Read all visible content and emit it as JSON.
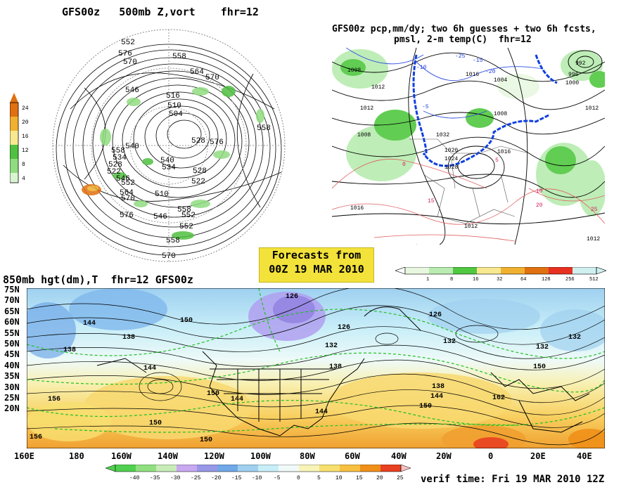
{
  "panels": {
    "top_left": {
      "title": "GFS00z   500mb Z,vort    fhr=12",
      "colorbar": {
        "labels": [
          "24",
          "20",
          "16",
          "12",
          "8",
          "4"
        ],
        "colors": [
          "#e07010",
          "#f0b030",
          "#f8e890",
          "#50c040",
          "#90dc80",
          "#d8f4d0"
        ]
      },
      "contour_labels": [
        "552",
        "576",
        "570",
        "558",
        "564",
        "570",
        "546",
        "558",
        "516",
        "510",
        "504",
        "528",
        "558",
        "540",
        "534",
        "528",
        "522",
        "546",
        "552",
        "564",
        "570",
        "540",
        "534",
        "510",
        "558",
        "576",
        "558",
        "570",
        "552",
        "576",
        "546",
        "552",
        "528",
        "522"
      ]
    },
    "top_right": {
      "title_line1": "GFS00z pcp,mm/dy; two 6h guesses + two 6h fcsts,",
      "title_line2": "pmsl, 2-m temp(C)  fhr=12",
      "pressure_labels": [
        "1008",
        "1012",
        "1004",
        "1016",
        "1020",
        "1024",
        "1028",
        "1032",
        "1008",
        "1012",
        "1016",
        "992",
        "996",
        "1000",
        "1008",
        "1012",
        "1016",
        "1012",
        "1012"
      ],
      "temp_labels": [
        "-10",
        "-5",
        "-15",
        "-20",
        "-25",
        "0",
        "5",
        "10",
        "15",
        "20",
        "25"
      ],
      "colorbar": {
        "labels": [
          "1",
          "8",
          "16",
          "32",
          "64",
          "128",
          "256",
          "512"
        ],
        "colors": [
          "#e8f8e0",
          "#b8ecb0",
          "#50c840",
          "#f8e890",
          "#f0b030",
          "#e07010",
          "#e83020",
          "#d0f0f0"
        ]
      }
    },
    "banner": {
      "line1": "Forecasts from",
      "line2": "00Z 19 MAR 2010"
    },
    "bottom": {
      "title": "850mb hgt(dm),T  fhr=12 GFS00z",
      "lat_labels": [
        "75N",
        "70N",
        "65N",
        "60N",
        "55N",
        "50N",
        "45N",
        "40N",
        "35N",
        "30N",
        "25N",
        "20N"
      ],
      "lon_labels": [
        "160E",
        "180",
        "160W",
        "140W",
        "120W",
        "100W",
        "80W",
        "60W",
        "40W",
        "20W",
        "0",
        "20E",
        "40E"
      ],
      "height_labels": [
        "126",
        "144",
        "150",
        "138",
        "138",
        "144",
        "132",
        "126",
        "126",
        "132",
        "138",
        "144",
        "150",
        "132",
        "150",
        "144",
        "156",
        "150",
        "162",
        "150",
        "144",
        "156",
        "150",
        "138",
        "132"
      ],
      "colorbar": {
        "labels": [
          "-40",
          "-35",
          "-30",
          "-25",
          "-20",
          "-15",
          "-10",
          "-5",
          "0",
          "5",
          "10",
          "15",
          "20",
          "25"
        ],
        "colors": [
          "#50d050",
          "#90e080",
          "#c8ecb8",
          "#c8a8f0",
          "#9898e8",
          "#70a8e8",
          "#a0d0f0",
          "#c8eef8",
          "#f0faf8",
          "#f8f4b8",
          "#f8e070",
          "#f8c040",
          "#f09018",
          "#e84020",
          "#f8c0c0"
        ]
      }
    },
    "verif_time": "verif time: Fri 19 MAR 2010 12Z"
  }
}
